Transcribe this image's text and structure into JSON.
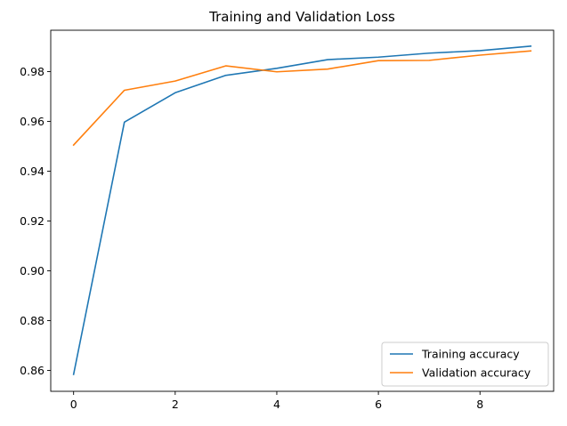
{
  "chart_data": {
    "type": "line",
    "title": "Training and Validation Loss",
    "xlabel": "",
    "ylabel": "",
    "xlim": [
      -0.45,
      9.45
    ],
    "ylim": [
      0.8516,
      0.9966
    ],
    "x_ticks": [
      0,
      2,
      4,
      6,
      8
    ],
    "y_ticks": [
      0.86,
      0.88,
      0.9,
      0.92,
      0.94,
      0.96,
      0.98
    ],
    "y_tick_labels": [
      "0.86",
      "0.88",
      "0.90",
      "0.92",
      "0.94",
      "0.96",
      "0.98"
    ],
    "grid": false,
    "legend_position": "lower-right",
    "x": [
      0,
      1,
      2,
      3,
      4,
      5,
      6,
      7,
      8,
      9
    ],
    "series": [
      {
        "name": "Training accuracy",
        "color": "#1f77b4",
        "values": [
          0.8584,
          0.9597,
          0.9715,
          0.9785,
          0.9813,
          0.9848,
          0.9858,
          0.9874,
          0.9884,
          0.9902
        ]
      },
      {
        "name": "Validation accuracy",
        "color": "#ff7f0e",
        "values": [
          0.9505,
          0.9725,
          0.9762,
          0.9823,
          0.9799,
          0.981,
          0.9844,
          0.9845,
          0.9866,
          0.9883
        ]
      }
    ]
  }
}
